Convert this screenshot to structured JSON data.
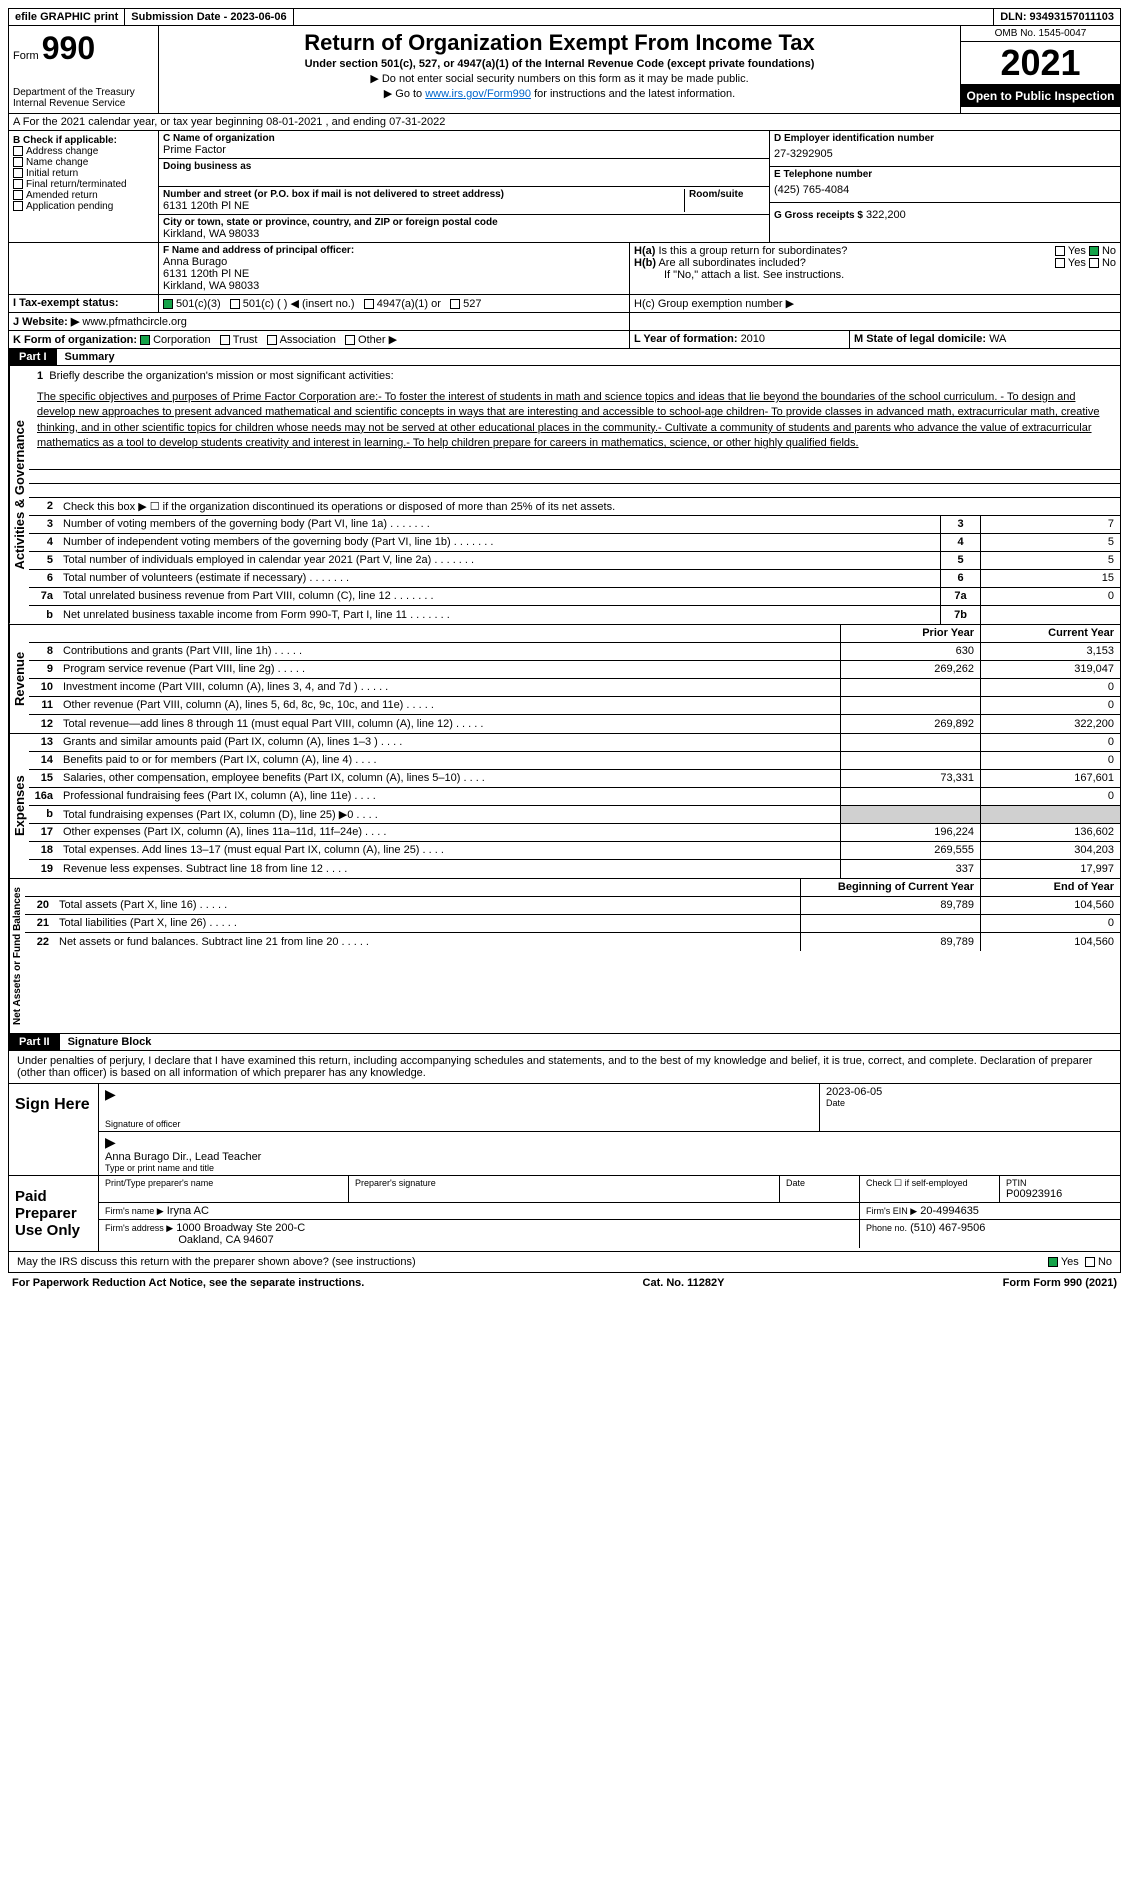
{
  "topbar": {
    "efile": "efile GRAPHIC print",
    "submission_label": "Submission Date - 2023-06-06",
    "dln": "DLN: 93493157011103"
  },
  "header": {
    "form_prefix": "Form",
    "form_number": "990",
    "dept": "Department of the Treasury",
    "irs": "Internal Revenue Service",
    "title": "Return of Organization Exempt From Income Tax",
    "subtitle1": "Under section 501(c), 527, or 4947(a)(1) of the Internal Revenue Code (except private foundations)",
    "subtitle2": "▶ Do not enter social security numbers on this form as it may be made public.",
    "subtitle3_pre": "▶ Go to ",
    "subtitle3_link": "www.irs.gov/Form990",
    "subtitle3_post": " for instructions and the latest information.",
    "omb": "OMB No. 1545-0047",
    "year": "2021",
    "inspection": "Open to Public Inspection"
  },
  "section_a": {
    "text": "A For the 2021 calendar year, or tax year beginning 08-01-2021   , and ending 07-31-2022"
  },
  "section_b": {
    "label": "B Check if applicable:",
    "items": [
      "Address change",
      "Name change",
      "Initial return",
      "Final return/terminated",
      "Amended return",
      "Application pending"
    ]
  },
  "section_c": {
    "name_label": "C Name of organization",
    "name": "Prime Factor",
    "dba_label": "Doing business as",
    "street_label": "Number and street (or P.O. box if mail is not delivered to street address)",
    "street": "6131 120th Pl NE",
    "room_label": "Room/suite",
    "city_label": "City or town, state or province, country, and ZIP or foreign postal code",
    "city": "Kirkland, WA  98033"
  },
  "section_d": {
    "label": "D Employer identification number",
    "value": "27-3292905"
  },
  "section_e": {
    "label": "E Telephone number",
    "value": "(425) 765-4084"
  },
  "section_g": {
    "label": "G Gross receipts $",
    "value": "322,200"
  },
  "section_f": {
    "label": "F  Name and address of principal officer:",
    "name": "Anna Burago",
    "addr1": "6131 120th Pl NE",
    "addr2": "Kirkland, WA  98033"
  },
  "section_h": {
    "ha_label": "H(a)  Is this a group return for subordinates?",
    "hb_label": "H(b)  Are all subordinates included?",
    "hb_note": "If \"No,\" attach a list. See instructions.",
    "hc_label": "H(c)  Group exemption number ▶",
    "yes": "Yes",
    "no": "No"
  },
  "section_i": {
    "label": "I   Tax-exempt status:",
    "opts": [
      "501(c)(3)",
      "501(c) (   ) ◀ (insert no.)",
      "4947(a)(1) or",
      "527"
    ]
  },
  "section_j": {
    "label": "J  Website: ▶",
    "value": "www.pfmathcircle.org"
  },
  "section_k": {
    "label": "K Form of organization:",
    "opts": [
      "Corporation",
      "Trust",
      "Association",
      "Other ▶"
    ]
  },
  "section_l": {
    "label": "L Year of formation: ",
    "value": "2010"
  },
  "section_m": {
    "label": "M State of legal domicile: ",
    "value": "WA"
  },
  "part1": {
    "label": "Part I",
    "title": "Summary",
    "line1_label": "Briefly describe the organization's mission or most significant activities:",
    "mission": "The specific objectives and purposes of Prime Factor Corporation are:- To foster the interest of students in math and science topics and ideas that lie beyond the boundaries of the school curriculum. - To design and develop new approaches to present advanced mathematical and scientific concepts in ways that are interesting and accessible to school-age children- To provide classes in advanced math, extracurricular math, creative thinking, and in other scientific topics for children whose needs may not be served at other educational places in the community.- Cultivate a community of students and parents who advance the value of extracurricular mathematics as a tool to develop students creativity and interest in learning.- To help children prepare for careers in mathematics, science, or other highly qualified fields.",
    "line2": "Check this box ▶ ☐ if the organization discontinued its operations or disposed of more than 25% of its net assets.",
    "governance_label": "Activities & Governance",
    "revenue_label": "Revenue",
    "expenses_label": "Expenses",
    "netassets_label": "Net Assets or Fund Balances",
    "prior_year": "Prior Year",
    "current_year": "Current Year",
    "beg_year": "Beginning of Current Year",
    "end_year": "End of Year",
    "lines_gov": [
      {
        "n": "3",
        "t": "Number of voting members of the governing body (Part VI, line 1a)",
        "box": "3",
        "v": "7"
      },
      {
        "n": "4",
        "t": "Number of independent voting members of the governing body (Part VI, line 1b)",
        "box": "4",
        "v": "5"
      },
      {
        "n": "5",
        "t": "Total number of individuals employed in calendar year 2021 (Part V, line 2a)",
        "box": "5",
        "v": "5"
      },
      {
        "n": "6",
        "t": "Total number of volunteers (estimate if necessary)",
        "box": "6",
        "v": "15"
      },
      {
        "n": "7a",
        "t": "Total unrelated business revenue from Part VIII, column (C), line 12",
        "box": "7a",
        "v": "0"
      },
      {
        "n": "b",
        "t": "Net unrelated business taxable income from Form 990-T, Part I, line 11",
        "box": "7b",
        "v": ""
      }
    ],
    "lines_rev": [
      {
        "n": "8",
        "t": "Contributions and grants (Part VIII, line 1h)",
        "p": "630",
        "c": "3,153"
      },
      {
        "n": "9",
        "t": "Program service revenue (Part VIII, line 2g)",
        "p": "269,262",
        "c": "319,047"
      },
      {
        "n": "10",
        "t": "Investment income (Part VIII, column (A), lines 3, 4, and 7d )",
        "p": "",
        "c": "0"
      },
      {
        "n": "11",
        "t": "Other revenue (Part VIII, column (A), lines 5, 6d, 8c, 9c, 10c, and 11e)",
        "p": "",
        "c": "0"
      },
      {
        "n": "12",
        "t": "Total revenue—add lines 8 through 11 (must equal Part VIII, column (A), line 12)",
        "p": "269,892",
        "c": "322,200"
      }
    ],
    "lines_exp": [
      {
        "n": "13",
        "t": "Grants and similar amounts paid (Part IX, column (A), lines 1–3 )",
        "p": "",
        "c": "0"
      },
      {
        "n": "14",
        "t": "Benefits paid to or for members (Part IX, column (A), line 4)",
        "p": "",
        "c": "0"
      },
      {
        "n": "15",
        "t": "Salaries, other compensation, employee benefits (Part IX, column (A), lines 5–10)",
        "p": "73,331",
        "c": "167,601"
      },
      {
        "n": "16a",
        "t": "Professional fundraising fees (Part IX, column (A), line 11e)",
        "p": "",
        "c": "0"
      },
      {
        "n": "b",
        "t": "Total fundraising expenses (Part IX, column (D), line 25) ▶0",
        "p": "shaded",
        "c": "shaded"
      },
      {
        "n": "17",
        "t": "Other expenses (Part IX, column (A), lines 11a–11d, 11f–24e)",
        "p": "196,224",
        "c": "136,602"
      },
      {
        "n": "18",
        "t": "Total expenses. Add lines 13–17 (must equal Part IX, column (A), line 25)",
        "p": "269,555",
        "c": "304,203"
      },
      {
        "n": "19",
        "t": "Revenue less expenses. Subtract line 18 from line 12",
        "p": "337",
        "c": "17,997"
      }
    ],
    "lines_net": [
      {
        "n": "20",
        "t": "Total assets (Part X, line 16)",
        "p": "89,789",
        "c": "104,560"
      },
      {
        "n": "21",
        "t": "Total liabilities (Part X, line 26)",
        "p": "",
        "c": "0"
      },
      {
        "n": "22",
        "t": "Net assets or fund balances. Subtract line 21 from line 20",
        "p": "89,789",
        "c": "104,560"
      }
    ]
  },
  "part2": {
    "label": "Part II",
    "title": "Signature Block",
    "penalty": "Under penalties of perjury, I declare that I have examined this return, including accompanying schedules and statements, and to the best of my knowledge and belief, it is true, correct, and complete. Declaration of preparer (other than officer) is based on all information of which preparer has any knowledge.",
    "sign_here": "Sign Here",
    "sig_officer": "Signature of officer",
    "date_label": "Date",
    "date_val": "2023-06-05",
    "officer_name": "Anna Burago  Dir., Lead Teacher",
    "type_name": "Type or print name and title",
    "paid_prep": "Paid Preparer Use Only",
    "prep_name_label": "Print/Type preparer's name",
    "prep_sig_label": "Preparer's signature",
    "check_self": "Check ☐ if self-employed",
    "ptin_label": "PTIN",
    "ptin": "P00923916",
    "firm_name_label": "Firm's name   ▶",
    "firm_name": "Iryna AC",
    "firm_ein_label": "Firm's EIN ▶",
    "firm_ein": "20-4994635",
    "firm_addr_label": "Firm's address ▶",
    "firm_addr1": "1000 Broadway Ste 200-C",
    "firm_addr2": "Oakland, CA  94607",
    "phone_label": "Phone no.",
    "phone": "(510) 467-9506",
    "discuss": "May the IRS discuss this return with the preparer shown above? (see instructions)",
    "yes": "Yes",
    "no": "No"
  },
  "footer": {
    "paperwork": "For Paperwork Reduction Act Notice, see the separate instructions.",
    "cat": "Cat. No. 11282Y",
    "form": "Form 990 (2021)"
  }
}
